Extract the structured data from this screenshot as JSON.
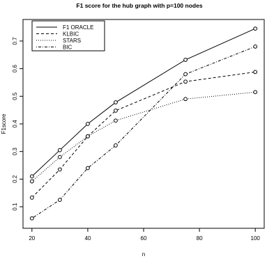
{
  "chart_data": {
    "type": "line",
    "title": "F1 score for the hub graph with p=100 nodes",
    "xlabel": "n",
    "ylabel": "F1score",
    "x": [
      20,
      30,
      40,
      50,
      75,
      100
    ],
    "xlim": [
      20,
      100
    ],
    "ylim": [
      0.05,
      0.75
    ],
    "xticks": [
      20,
      40,
      60,
      80,
      100
    ],
    "yticks": [
      0.1,
      0.2,
      0.3,
      0.4,
      0.5,
      0.6,
      0.7
    ],
    "grid": false,
    "legend_position": "top-left",
    "series": [
      {
        "name": "F1 ORACLE",
        "dash": "solid",
        "values": [
          0.21,
          0.305,
          0.4,
          0.478,
          0.632,
          0.745
        ]
      },
      {
        "name": "KLBIC",
        "dash": "dashed",
        "values": [
          0.133,
          0.235,
          0.355,
          0.448,
          0.553,
          0.588
        ]
      },
      {
        "name": "STARS",
        "dash": "dotted",
        "values": [
          0.192,
          0.28,
          0.355,
          0.412,
          0.49,
          0.515
        ]
      },
      {
        "name": "BIC",
        "dash": "dotdash",
        "values": [
          0.058,
          0.125,
          0.24,
          0.322,
          0.58,
          0.68
        ]
      }
    ]
  }
}
